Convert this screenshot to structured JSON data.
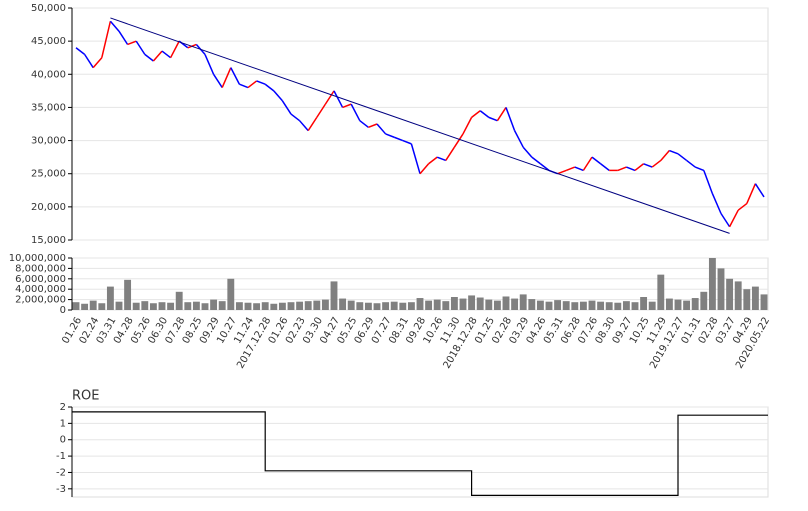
{
  "chart_data": [
    {
      "type": "price",
      "categories": [
        "01.26",
        null,
        "02.24",
        null,
        "03.31",
        null,
        "04.28",
        null,
        "05.26",
        null,
        "06.30",
        null,
        "07.28",
        null,
        "08.25",
        null,
        "09.29",
        null,
        "10.27",
        null,
        "11.24",
        null,
        "2017.12.28",
        null,
        "01.26",
        null,
        "02.23",
        null,
        "03.30",
        null,
        "04.27",
        null,
        "05.25",
        null,
        "06.29",
        null,
        "07.27",
        null,
        "08.31",
        null,
        "09.28",
        null,
        "10.26",
        null,
        "11.30",
        null,
        "2018.12.28",
        null,
        "01.25",
        null,
        "02.28",
        null,
        "03.29",
        null,
        "04.26",
        null,
        "05.31",
        null,
        "06.28",
        null,
        "07.26",
        null,
        "08.30",
        null,
        "09.27",
        null,
        "10.25",
        null,
        "11.29",
        null,
        "2019.12.27",
        null,
        "01.31",
        null,
        "02.28",
        null,
        "03.27",
        null,
        "04.29",
        null,
        "2020.05.22"
      ],
      "values": [
        44000,
        43000,
        41000,
        42500,
        48000,
        46500,
        44500,
        45000,
        43000,
        42000,
        43500,
        42500,
        45000,
        44000,
        44500,
        43000,
        40000,
        38000,
        41000,
        38500,
        38000,
        39000,
        38500,
        37500,
        36000,
        34000,
        33000,
        31500,
        33500,
        35500,
        37500,
        35000,
        35500,
        33000,
        32000,
        32500,
        31000,
        30500,
        30000,
        29500,
        25000,
        26500,
        27500,
        27000,
        29000,
        31000,
        33500,
        34500,
        33500,
        33000,
        35000,
        31500,
        29000,
        27500,
        26500,
        25500,
        25000,
        25500,
        26000,
        25500,
        27500,
        26500,
        25500,
        25500,
        26000,
        25500,
        26500,
        26000,
        27000,
        28500,
        28000,
        27000,
        26000,
        25500,
        22000,
        19000,
        17000,
        19500,
        20500,
        23500,
        21500
      ],
      "up_color": "#ff0000",
      "down_color": "#0000ff",
      "trend": {
        "x": [
          "03.31",
          "03.27"
        ],
        "values": [
          48500,
          16000
        ],
        "color": "#000080"
      },
      "ylim": [
        15000,
        50000
      ],
      "yticks": [
        {
          "value": 15000,
          "label": "15,000"
        },
        {
          "value": 20000,
          "label": "20,000"
        },
        {
          "value": 25000,
          "label": "25,000"
        },
        {
          "value": 30000,
          "label": "30,000"
        },
        {
          "value": 35000,
          "label": "35,000"
        },
        {
          "value": 40000,
          "label": "40,000"
        },
        {
          "value": 45000,
          "label": "45,000"
        },
        {
          "value": 50000,
          "label": "50,000"
        }
      ],
      "grid": true
    },
    {
      "type": "bar",
      "color": "#808080",
      "values": [
        1500000,
        1200000,
        1800000,
        1300000,
        4500000,
        1600000,
        5800000,
        1400000,
        1700000,
        1300000,
        1500000,
        1400000,
        3500000,
        1500000,
        1600000,
        1300000,
        2000000,
        1700000,
        6000000,
        1500000,
        1400000,
        1300000,
        1500000,
        1200000,
        1400000,
        1500000,
        1600000,
        1700000,
        1800000,
        2000000,
        5500000,
        2200000,
        1800000,
        1500000,
        1400000,
        1300000,
        1500000,
        1600000,
        1400000,
        1500000,
        2300000,
        1800000,
        2000000,
        1700000,
        2500000,
        2200000,
        2800000,
        2400000,
        2000000,
        1800000,
        2600000,
        2200000,
        3000000,
        2100000,
        1800000,
        1600000,
        1900000,
        1700000,
        1500000,
        1600000,
        1800000,
        1600000,
        1500000,
        1400000,
        1700000,
        1500000,
        2500000,
        1600000,
        6800000,
        2200000,
        2000000,
        1800000,
        2300000,
        3500000,
        10000000,
        8000000,
        6000000,
        5500000,
        4000000,
        4500000,
        3000000
      ],
      "ylim": [
        0,
        10000000
      ],
      "yticks": [
        0,
        {
          "value": 2000000,
          "label": "2,000,000"
        },
        {
          "value": 4000000,
          "label": "4,000,000"
        },
        {
          "value": 6000000,
          "label": "6,000,000"
        },
        {
          "value": 8000000,
          "label": "8,000,000"
        },
        {
          "value": 10000000,
          "label": "10,000,000"
        }
      ],
      "grid": true
    },
    {
      "type": "step",
      "title": "ROE",
      "color": "#000000",
      "x": [
        null,
        "2017.12.28",
        "2018.12.28",
        "2019.12.27"
      ],
      "values": [
        1.7,
        -1.9,
        -3.4,
        1.5
      ],
      "ylim": [
        -3.5,
        2
      ],
      "yticks": [
        -3,
        -2,
        -1,
        0,
        1,
        2
      ],
      "grid": true
    }
  ]
}
